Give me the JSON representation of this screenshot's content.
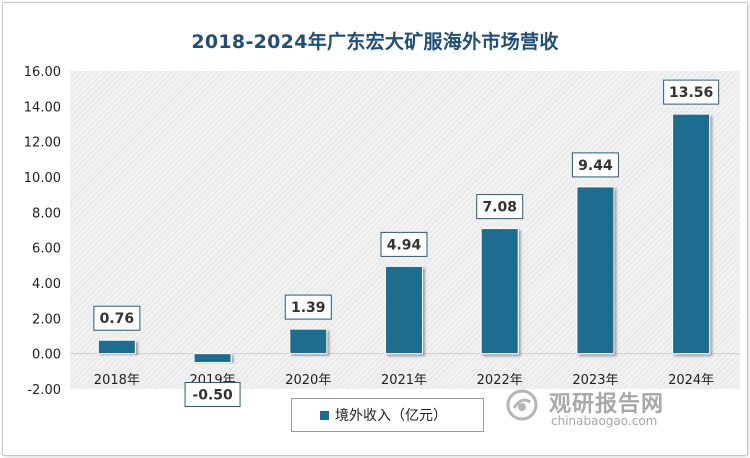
{
  "chart_data": {
    "type": "bar",
    "title": "2018-2024年广东宏大矿服海外市场营收",
    "categories": [
      "2018年",
      "2019年",
      "2020年",
      "2021年",
      "2022年",
      "2023年",
      "2024年"
    ],
    "series": [
      {
        "name": "境外收入（亿元）",
        "values": [
          0.76,
          -0.5,
          1.39,
          4.94,
          7.08,
          9.44,
          13.56
        ]
      }
    ],
    "data_labels": [
      "0.76",
      "-0.50",
      "1.39",
      "4.94",
      "7.08",
      "9.44",
      "13.56"
    ],
    "y_ticks": [
      "-2.00",
      "0.00",
      "2.00",
      "4.00",
      "6.00",
      "8.00",
      "10.00",
      "12.00",
      "14.00",
      "16.00"
    ],
    "ylim": [
      -2,
      16
    ],
    "xlabel": "",
    "ylabel": "",
    "grid": false,
    "legend_position": "bottom",
    "bar_color": "#1b6d8f",
    "plot_background": "hatched light gray"
  },
  "watermark": {
    "brand": "观研报告网",
    "url": "chinabaogao.com",
    "icon": "chinabaogao-logo-icon"
  }
}
